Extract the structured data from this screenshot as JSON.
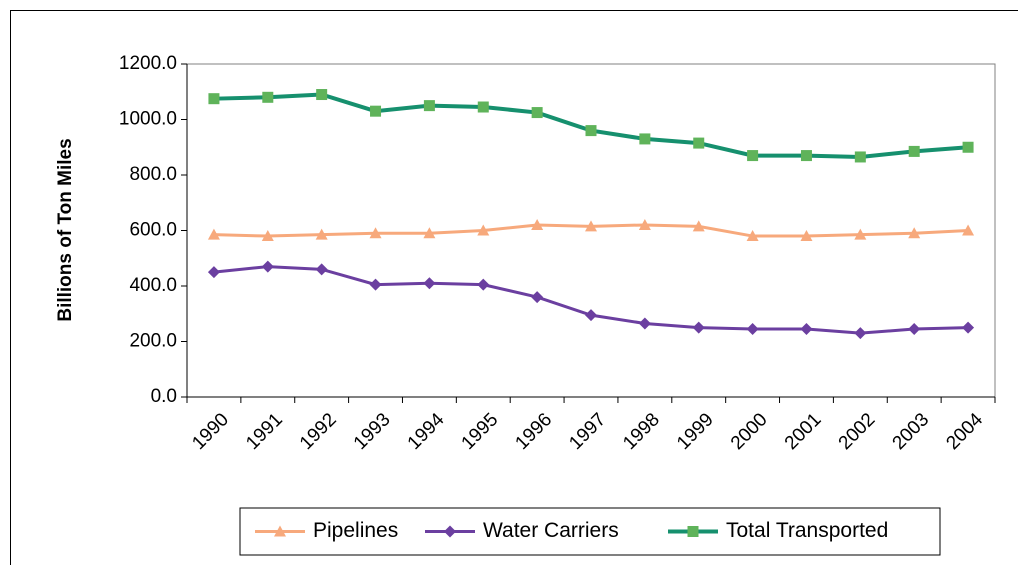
{
  "chart_data": {
    "type": "line",
    "y_label": "Billions of Ton Miles",
    "categories": [
      "1990",
      "1991",
      "1992",
      "1993",
      "1994",
      "1995",
      "1996",
      "1997",
      "1998",
      "1999",
      "2000",
      "2001",
      "2002",
      "2003",
      "2004"
    ],
    "series": [
      {
        "name": "Pipelines",
        "color": "#f7a97c",
        "marker": "triangle",
        "values": [
          585,
          580,
          585,
          590,
          590,
          600,
          620,
          615,
          620,
          615,
          580,
          580,
          585,
          590,
          600
        ]
      },
      {
        "name": "Water Carriers",
        "color": "#6b3fa0",
        "marker": "diamond",
        "values": [
          450,
          470,
          460,
          405,
          410,
          405,
          360,
          295,
          265,
          250,
          245,
          245,
          230,
          245,
          250
        ]
      },
      {
        "name": "Total Transported",
        "color": "#16906e",
        "marker_color": "#5fb35a",
        "marker": "square",
        "values": [
          1075,
          1080,
          1090,
          1030,
          1050,
          1045,
          1025,
          960,
          930,
          915,
          870,
          870,
          865,
          885,
          900
        ]
      }
    ],
    "ylim": [
      0,
      1200
    ],
    "yticks": [
      {
        "value": 0,
        "label": "0.0"
      },
      {
        "value": 200,
        "label": "200.0"
      },
      {
        "value": 400,
        "label": "400.0"
      },
      {
        "value": 600,
        "label": "600.0"
      },
      {
        "value": 800,
        "label": "800.0"
      },
      {
        "value": 1000,
        "label": "1000.0"
      },
      {
        "value": 1200,
        "label": "1200.0"
      }
    ],
    "legend": "bottom"
  }
}
